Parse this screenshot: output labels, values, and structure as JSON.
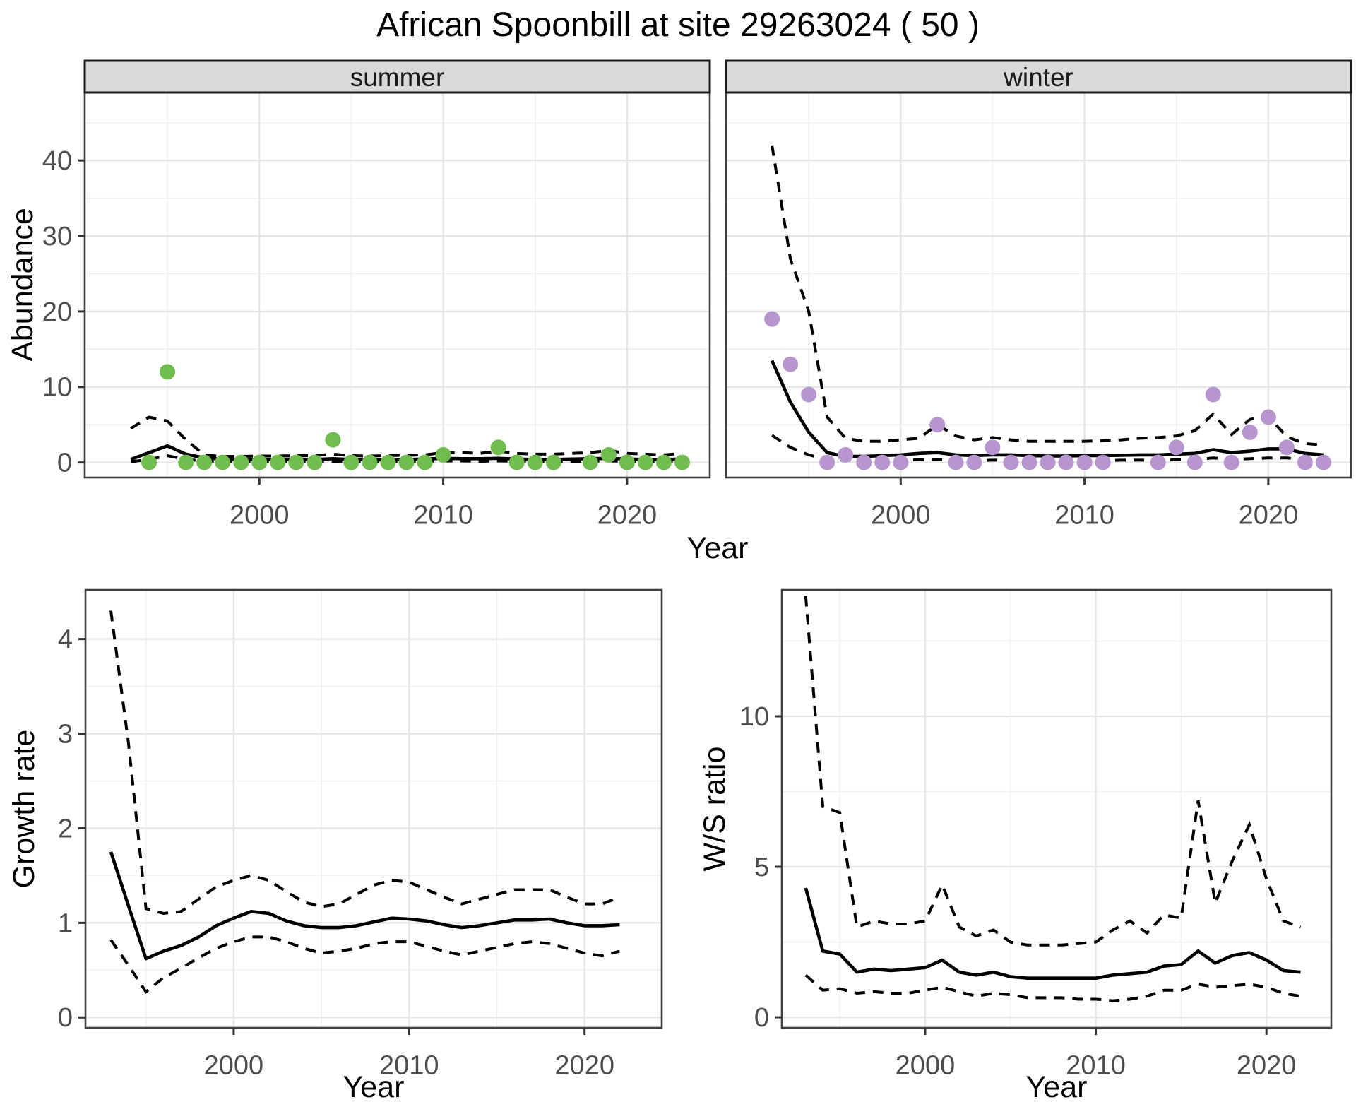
{
  "title": "African Spoonbill at site 29263024 ( 50 )",
  "axes": {
    "x_label": "Year",
    "y_label_abundance": "Abundance",
    "y_label_growth": "Growth rate",
    "y_label_ws": "W/S ratio"
  },
  "colors": {
    "summer_point": "#72BD4F",
    "winter_point": "#B795CE",
    "line": "#000000",
    "strip_bg": "#D9D9D9",
    "strip_border": "#1A1A1A",
    "panel_border": "#404040",
    "grid_major": "#E6E6E6",
    "grid_minor": "#F1F1F1",
    "tick_mark": "#333333",
    "axis_text": "#4D4D4D"
  },
  "chart_data": [
    {
      "id": "abundance-summer",
      "type": "scatter",
      "facet_label": "summer",
      "xlabel": "Year",
      "ylabel": "Abundance",
      "x_ticks": [
        2000,
        2010,
        2020
      ],
      "y_ticks": [
        0,
        10,
        20,
        30,
        40
      ],
      "xlim": [
        1990.5,
        2024.5
      ],
      "ylim": [
        -2,
        49
      ],
      "point_color": "#72BD4F",
      "points": {
        "years": [
          1994,
          1995,
          1996,
          1997,
          1998,
          1999,
          2000,
          2001,
          2002,
          2003,
          2004,
          2005,
          2006,
          2007,
          2008,
          2009,
          2010,
          2013,
          2014,
          2015,
          2016,
          2018,
          2019,
          2020,
          2021,
          2022,
          2023
        ],
        "values": [
          0,
          12,
          0,
          0,
          0,
          0,
          0,
          0,
          0,
          0,
          3,
          0,
          0,
          0,
          0,
          0,
          1,
          2,
          0,
          0,
          0,
          0,
          1,
          0,
          0,
          0,
          0
        ]
      },
      "median": {
        "years": [
          1993,
          1994,
          1995,
          1996,
          1997,
          1998,
          1999,
          2000,
          2001,
          2002,
          2003,
          2004,
          2005,
          2006,
          2007,
          2008,
          2009,
          2010,
          2011,
          2012,
          2013,
          2014,
          2015,
          2016,
          2017,
          2018,
          2019,
          2020,
          2021,
          2022,
          2023
        ],
        "values": [
          0.4,
          1.3,
          2.2,
          1.1,
          0.6,
          0.45,
          0.4,
          0.4,
          0.4,
          0.45,
          0.4,
          0.5,
          0.4,
          0.35,
          0.35,
          0.4,
          0.45,
          0.55,
          0.5,
          0.5,
          0.55,
          0.45,
          0.4,
          0.4,
          0.45,
          0.5,
          0.55,
          0.45,
          0.4,
          0.4,
          0.45
        ]
      },
      "ci_upper": {
        "years": [
          1993,
          1994,
          1995,
          1996,
          1997,
          1998,
          1999,
          2000,
          2001,
          2002,
          2003,
          2004,
          2005,
          2006,
          2007,
          2008,
          2009,
          2010,
          2011,
          2012,
          2013,
          2014,
          2015,
          2016,
          2017,
          2018,
          2019,
          2020,
          2021,
          2022,
          2023
        ],
        "values": [
          4.5,
          6.0,
          5.5,
          3.0,
          1.0,
          0.8,
          0.8,
          0.85,
          0.85,
          0.9,
          0.9,
          1.1,
          0.9,
          0.85,
          0.9,
          0.95,
          1.0,
          1.3,
          1.3,
          1.2,
          1.5,
          1.2,
          1.1,
          1.1,
          1.2,
          1.3,
          1.6,
          1.2,
          1.1,
          1.0,
          1.2
        ]
      },
      "ci_lower": {
        "years": [
          1993,
          1994,
          1995,
          1996,
          1997,
          1998,
          1999,
          2000,
          2001,
          2002,
          2003,
          2004,
          2005,
          2006,
          2007,
          2008,
          2009,
          2010,
          2011,
          2012,
          2013,
          2014,
          2015,
          2016,
          2017,
          2018,
          2019,
          2020,
          2021,
          2022,
          2023
        ],
        "values": [
          0.1,
          0.4,
          0.9,
          0.4,
          0.2,
          0.1,
          0.1,
          0.1,
          0.1,
          0.1,
          0.1,
          0.15,
          0.1,
          0.1,
          0.1,
          0.1,
          0.15,
          0.2,
          0.2,
          0.15,
          0.2,
          0.15,
          0.1,
          0.1,
          0.15,
          0.15,
          0.2,
          0.15,
          0.1,
          0.1,
          0.15
        ]
      }
    },
    {
      "id": "abundance-winter",
      "type": "scatter",
      "facet_label": "winter",
      "xlabel": "Year",
      "ylabel": "Abundance",
      "x_ticks": [
        2000,
        2010,
        2020
      ],
      "y_ticks": [
        0,
        10,
        20,
        30,
        40
      ],
      "xlim": [
        1990.5,
        2024.5
      ],
      "ylim": [
        -2,
        49
      ],
      "point_color": "#B795CE",
      "points": {
        "years": [
          1993,
          1994,
          1995,
          1996,
          1997,
          1998,
          1999,
          2000,
          2002,
          2003,
          2004,
          2005,
          2006,
          2007,
          2008,
          2009,
          2010,
          2011,
          2014,
          2015,
          2016,
          2017,
          2018,
          2019,
          2020,
          2021,
          2022,
          2023
        ],
        "values": [
          19,
          13,
          9,
          0,
          1,
          0,
          0,
          0,
          5,
          0,
          0,
          2,
          0,
          0,
          0,
          0,
          0,
          0,
          0,
          2,
          0,
          9,
          0,
          4,
          6,
          2,
          0,
          0
        ]
      },
      "median": {
        "years": [
          1993,
          1994,
          1995,
          1996,
          1997,
          1998,
          1999,
          2000,
          2001,
          2002,
          2003,
          2004,
          2005,
          2006,
          2007,
          2008,
          2009,
          2010,
          2011,
          2012,
          2013,
          2014,
          2015,
          2016,
          2017,
          2018,
          2019,
          2020,
          2021,
          2022,
          2023
        ],
        "values": [
          13.5,
          8.0,
          4.0,
          1.3,
          0.8,
          0.8,
          0.9,
          1.0,
          1.2,
          1.3,
          1.0,
          0.9,
          1.0,
          1.0,
          0.9,
          0.85,
          0.85,
          0.9,
          0.9,
          0.95,
          1.0,
          1.0,
          1.1,
          1.2,
          1.7,
          1.3,
          1.5,
          1.8,
          1.8,
          1.2,
          1.0
        ]
      },
      "ci_upper": {
        "years": [
          1993,
          1994,
          1995,
          1996,
          1997,
          1998,
          1999,
          2000,
          2001,
          2002,
          2003,
          2004,
          2005,
          2006,
          2007,
          2008,
          2009,
          2010,
          2011,
          2012,
          2013,
          2014,
          2015,
          2016,
          2017,
          2018,
          2019,
          2020,
          2021,
          2022,
          2023
        ],
        "values": [
          42,
          27,
          20,
          6.0,
          3.2,
          2.8,
          2.8,
          3.0,
          3.2,
          5.0,
          3.5,
          3.0,
          3.3,
          3.0,
          2.8,
          2.8,
          2.8,
          2.8,
          2.9,
          3.0,
          3.2,
          3.3,
          3.5,
          4.2,
          6.4,
          3.7,
          5.7,
          6.1,
          3.4,
          2.5,
          2.3
        ]
      },
      "ci_lower": {
        "years": [
          1993,
          1994,
          1995,
          1996,
          1997,
          1998,
          1999,
          2000,
          2001,
          2002,
          2003,
          2004,
          2005,
          2006,
          2007,
          2008,
          2009,
          2010,
          2011,
          2012,
          2013,
          2014,
          2015,
          2016,
          2017,
          2018,
          2019,
          2020,
          2021,
          2022,
          2023
        ],
        "values": [
          3.6,
          2.0,
          1.0,
          0.4,
          0.3,
          0.25,
          0.25,
          0.3,
          0.35,
          0.4,
          0.3,
          0.25,
          0.3,
          0.3,
          0.25,
          0.25,
          0.25,
          0.25,
          0.25,
          0.3,
          0.3,
          0.3,
          0.35,
          0.4,
          0.6,
          0.4,
          0.5,
          0.6,
          0.6,
          0.35,
          0.3
        ]
      }
    },
    {
      "id": "growth-rate",
      "type": "line",
      "facet_label": "",
      "xlabel": "Year",
      "ylabel": "Growth rate",
      "x_ticks": [
        2000,
        2010,
        2020
      ],
      "y_ticks": [
        0,
        1,
        2,
        3,
        4
      ],
      "xlim": [
        1991.55,
        2024.4
      ],
      "ylim": [
        -0.11,
        4.52
      ],
      "median": {
        "years": [
          1993,
          1994,
          1995,
          1996,
          1997,
          1998,
          1999,
          2000,
          2001,
          2002,
          2003,
          2004,
          2005,
          2006,
          2007,
          2008,
          2009,
          2010,
          2011,
          2012,
          2013,
          2014,
          2015,
          2016,
          2017,
          2018,
          2019,
          2020,
          2021,
          2022
        ],
        "values": [
          1.75,
          1.18,
          0.62,
          0.7,
          0.76,
          0.85,
          0.97,
          1.05,
          1.12,
          1.1,
          1.02,
          0.97,
          0.95,
          0.95,
          0.97,
          1.01,
          1.05,
          1.04,
          1.02,
          0.98,
          0.95,
          0.97,
          1.0,
          1.03,
          1.03,
          1.04,
          1.0,
          0.97,
          0.97,
          0.98
        ]
      },
      "ci_upper": {
        "years": [
          1993,
          1994,
          1995,
          1996,
          1997,
          1998,
          1999,
          2000,
          2001,
          2002,
          2003,
          2004,
          2005,
          2006,
          2007,
          2008,
          2009,
          2010,
          2011,
          2012,
          2013,
          2014,
          2015,
          2016,
          2017,
          2018,
          2019,
          2020,
          2021,
          2022
        ],
        "values": [
          4.3,
          2.9,
          1.15,
          1.1,
          1.12,
          1.25,
          1.38,
          1.45,
          1.5,
          1.45,
          1.33,
          1.22,
          1.17,
          1.2,
          1.3,
          1.4,
          1.45,
          1.43,
          1.35,
          1.27,
          1.2,
          1.25,
          1.3,
          1.35,
          1.35,
          1.35,
          1.27,
          1.2,
          1.2,
          1.27
        ]
      },
      "ci_lower": {
        "years": [
          1993,
          1994,
          1995,
          1996,
          1997,
          1998,
          1999,
          2000,
          2001,
          2002,
          2003,
          2004,
          2005,
          2006,
          2007,
          2008,
          2009,
          2010,
          2011,
          2012,
          2013,
          2014,
          2015,
          2016,
          2017,
          2018,
          2019,
          2020,
          2021,
          2022
        ],
        "values": [
          0.82,
          0.55,
          0.27,
          0.42,
          0.52,
          0.63,
          0.73,
          0.8,
          0.85,
          0.85,
          0.8,
          0.73,
          0.68,
          0.7,
          0.73,
          0.78,
          0.8,
          0.8,
          0.75,
          0.7,
          0.66,
          0.7,
          0.74,
          0.78,
          0.8,
          0.78,
          0.73,
          0.68,
          0.65,
          0.7
        ]
      }
    },
    {
      "id": "ws-ratio",
      "type": "line",
      "facet_label": "",
      "xlabel": "Year",
      "ylabel": "W/S ratio",
      "x_ticks": [
        2000,
        2010,
        2020
      ],
      "y_ticks": [
        0,
        5,
        10
      ],
      "xlim": [
        1991.6,
        2023.8
      ],
      "ylim": [
        -0.35,
        14.2
      ],
      "median": {
        "years": [
          1993,
          1994,
          1995,
          1996,
          1997,
          1998,
          1999,
          2000,
          2001,
          2002,
          2003,
          2004,
          2005,
          2006,
          2007,
          2008,
          2009,
          2010,
          2011,
          2012,
          2013,
          2014,
          2015,
          2016,
          2017,
          2018,
          2019,
          2020,
          2021,
          2022
        ],
        "values": [
          4.3,
          2.2,
          2.1,
          1.5,
          1.6,
          1.55,
          1.6,
          1.65,
          1.9,
          1.5,
          1.4,
          1.5,
          1.35,
          1.3,
          1.3,
          1.3,
          1.3,
          1.3,
          1.4,
          1.45,
          1.5,
          1.7,
          1.75,
          2.2,
          1.8,
          2.05,
          2.15,
          1.9,
          1.55,
          1.5
        ]
      },
      "ci_upper": {
        "years": [
          1993,
          1994,
          1995,
          1996,
          1997,
          1998,
          1999,
          2000,
          2001,
          2002,
          2003,
          2004,
          2005,
          2006,
          2007,
          2008,
          2009,
          2010,
          2011,
          2012,
          2013,
          2014,
          2015,
          2016,
          2017,
          2018,
          2019,
          2020,
          2021,
          2022
        ],
        "values": [
          14.0,
          7.0,
          6.8,
          3.0,
          3.2,
          3.1,
          3.1,
          3.2,
          4.4,
          3.0,
          2.7,
          2.9,
          2.5,
          2.4,
          2.4,
          2.4,
          2.45,
          2.5,
          2.9,
          3.2,
          2.8,
          3.4,
          3.3,
          7.2,
          3.8,
          5.2,
          6.4,
          4.6,
          3.2,
          3.0
        ]
      },
      "ci_lower": {
        "years": [
          1993,
          1994,
          1995,
          1996,
          1997,
          1998,
          1999,
          2000,
          2001,
          2002,
          2003,
          2004,
          2005,
          2006,
          2007,
          2008,
          2009,
          2010,
          2011,
          2012,
          2013,
          2014,
          2015,
          2016,
          2017,
          2018,
          2019,
          2020,
          2021,
          2022
        ],
        "values": [
          1.4,
          0.9,
          0.95,
          0.8,
          0.85,
          0.8,
          0.8,
          0.9,
          1.0,
          0.85,
          0.7,
          0.8,
          0.75,
          0.65,
          0.65,
          0.65,
          0.6,
          0.6,
          0.55,
          0.6,
          0.7,
          0.9,
          0.9,
          1.1,
          1.0,
          1.05,
          1.1,
          1.0,
          0.8,
          0.7
        ]
      }
    }
  ]
}
